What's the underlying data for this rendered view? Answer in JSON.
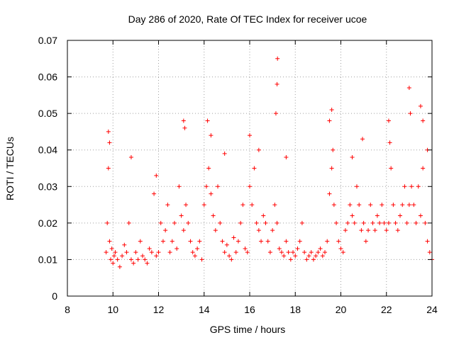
{
  "chart_data": {
    "type": "scatter",
    "title": "Day 286 of 2020, Rate Of TEC Index for receiver ucoe",
    "xlabel": "GPS time / hours",
    "ylabel": "ROTI / TECUs",
    "xlim": [
      8,
      24
    ],
    "ylim": [
      0,
      0.07
    ],
    "xticks": [
      "8",
      "10",
      "12",
      "14",
      "16",
      "18",
      "20",
      "22",
      "24"
    ],
    "yticks": [
      "0",
      "0.01",
      "0.02",
      "0.03",
      "0.04",
      "0.05",
      "0.06",
      "0.07"
    ],
    "grid": true,
    "marker": "+",
    "color": "#ff0000",
    "series": [
      {
        "name": "ROTI",
        "x": [
          9.7,
          9.75,
          9.8,
          9.85,
          9.9,
          9.95,
          10.0,
          10.05,
          10.1,
          10.2,
          10.3,
          10.4,
          10.5,
          10.6,
          10.7,
          10.8,
          10.9,
          11.0,
          11.1,
          11.2,
          11.3,
          11.4,
          11.5,
          11.6,
          11.7,
          11.8,
          11.9,
          12.0,
          12.1,
          12.2,
          12.3,
          12.4,
          12.5,
          12.6,
          12.7,
          12.8,
          12.9,
          13.0,
          13.1,
          13.2,
          13.3,
          13.4,
          13.5,
          13.6,
          13.7,
          13.8,
          13.9,
          14.0,
          14.1,
          14.2,
          14.3,
          14.4,
          14.5,
          14.6,
          14.7,
          14.8,
          14.9,
          15.0,
          15.1,
          15.2,
          15.3,
          15.4,
          15.5,
          15.6,
          15.7,
          15.8,
          15.9,
          16.0,
          16.1,
          16.2,
          16.3,
          16.4,
          16.5,
          16.6,
          16.7,
          16.8,
          16.9,
          17.0,
          17.1,
          17.2,
          17.3,
          17.4,
          17.5,
          17.6,
          17.7,
          17.8,
          17.9,
          18.0,
          18.1,
          18.2,
          18.3,
          18.4,
          18.5,
          18.6,
          18.7,
          18.8,
          18.9,
          19.0,
          19.1,
          19.2,
          19.3,
          19.4,
          19.5,
          19.6,
          19.7,
          19.8,
          19.9,
          20.0,
          20.1,
          20.2,
          20.3,
          20.4,
          20.5,
          20.6,
          20.7,
          20.8,
          20.9,
          21.0,
          21.1,
          21.2,
          21.3,
          21.4,
          21.5,
          21.6,
          21.7,
          21.8,
          21.9,
          22.0,
          22.1,
          22.2,
          22.3,
          22.4,
          22.5,
          22.6,
          22.7,
          22.8,
          22.9,
          23.0,
          23.1,
          23.2,
          23.3,
          23.4,
          23.5,
          23.6,
          23.7,
          23.8,
          23.9,
          24.0,
          9.8,
          9.85,
          10.8,
          11.9,
          13.1,
          13.15,
          14.15,
          14.3,
          14.9,
          16.0,
          16.4,
          17.15,
          17.2,
          17.22,
          17.6,
          19.5,
          19.6,
          19.65,
          20.5,
          20.95,
          22.1,
          22.15,
          23.0,
          23.05,
          23.5,
          23.6,
          23.8
        ],
        "y": [
          0.012,
          0.02,
          0.035,
          0.015,
          0.01,
          0.013,
          0.009,
          0.011,
          0.012,
          0.01,
          0.008,
          0.011,
          0.014,
          0.012,
          0.02,
          0.01,
          0.009,
          0.012,
          0.01,
          0.015,
          0.011,
          0.01,
          0.009,
          0.013,
          0.012,
          0.028,
          0.011,
          0.012,
          0.02,
          0.015,
          0.018,
          0.025,
          0.012,
          0.015,
          0.02,
          0.013,
          0.03,
          0.022,
          0.018,
          0.025,
          0.02,
          0.015,
          0.012,
          0.011,
          0.013,
          0.015,
          0.01,
          0.025,
          0.03,
          0.035,
          0.028,
          0.022,
          0.018,
          0.03,
          0.02,
          0.015,
          0.012,
          0.014,
          0.011,
          0.01,
          0.016,
          0.012,
          0.015,
          0.02,
          0.025,
          0.013,
          0.012,
          0.03,
          0.025,
          0.035,
          0.02,
          0.018,
          0.015,
          0.022,
          0.02,
          0.015,
          0.012,
          0.018,
          0.025,
          0.02,
          0.013,
          0.012,
          0.011,
          0.015,
          0.012,
          0.01,
          0.012,
          0.011,
          0.013,
          0.015,
          0.02,
          0.012,
          0.01,
          0.011,
          0.012,
          0.01,
          0.011,
          0.012,
          0.013,
          0.011,
          0.012,
          0.015,
          0.028,
          0.035,
          0.025,
          0.02,
          0.015,
          0.013,
          0.012,
          0.018,
          0.02,
          0.025,
          0.022,
          0.02,
          0.03,
          0.025,
          0.018,
          0.02,
          0.015,
          0.018,
          0.025,
          0.02,
          0.018,
          0.022,
          0.02,
          0.025,
          0.02,
          0.018,
          0.02,
          0.035,
          0.025,
          0.02,
          0.018,
          0.022,
          0.025,
          0.03,
          0.02,
          0.025,
          0.03,
          0.025,
          0.02,
          0.03,
          0.022,
          0.035,
          0.02,
          0.015,
          0.012,
          0.01,
          0.045,
          0.042,
          0.038,
          0.033,
          0.048,
          0.046,
          0.048,
          0.044,
          0.039,
          0.044,
          0.04,
          0.05,
          0.058,
          0.065,
          0.038,
          0.048,
          0.051,
          0.04,
          0.038,
          0.043,
          0.048,
          0.042,
          0.057,
          0.05,
          0.052,
          0.048,
          0.04
        ]
      }
    ]
  }
}
